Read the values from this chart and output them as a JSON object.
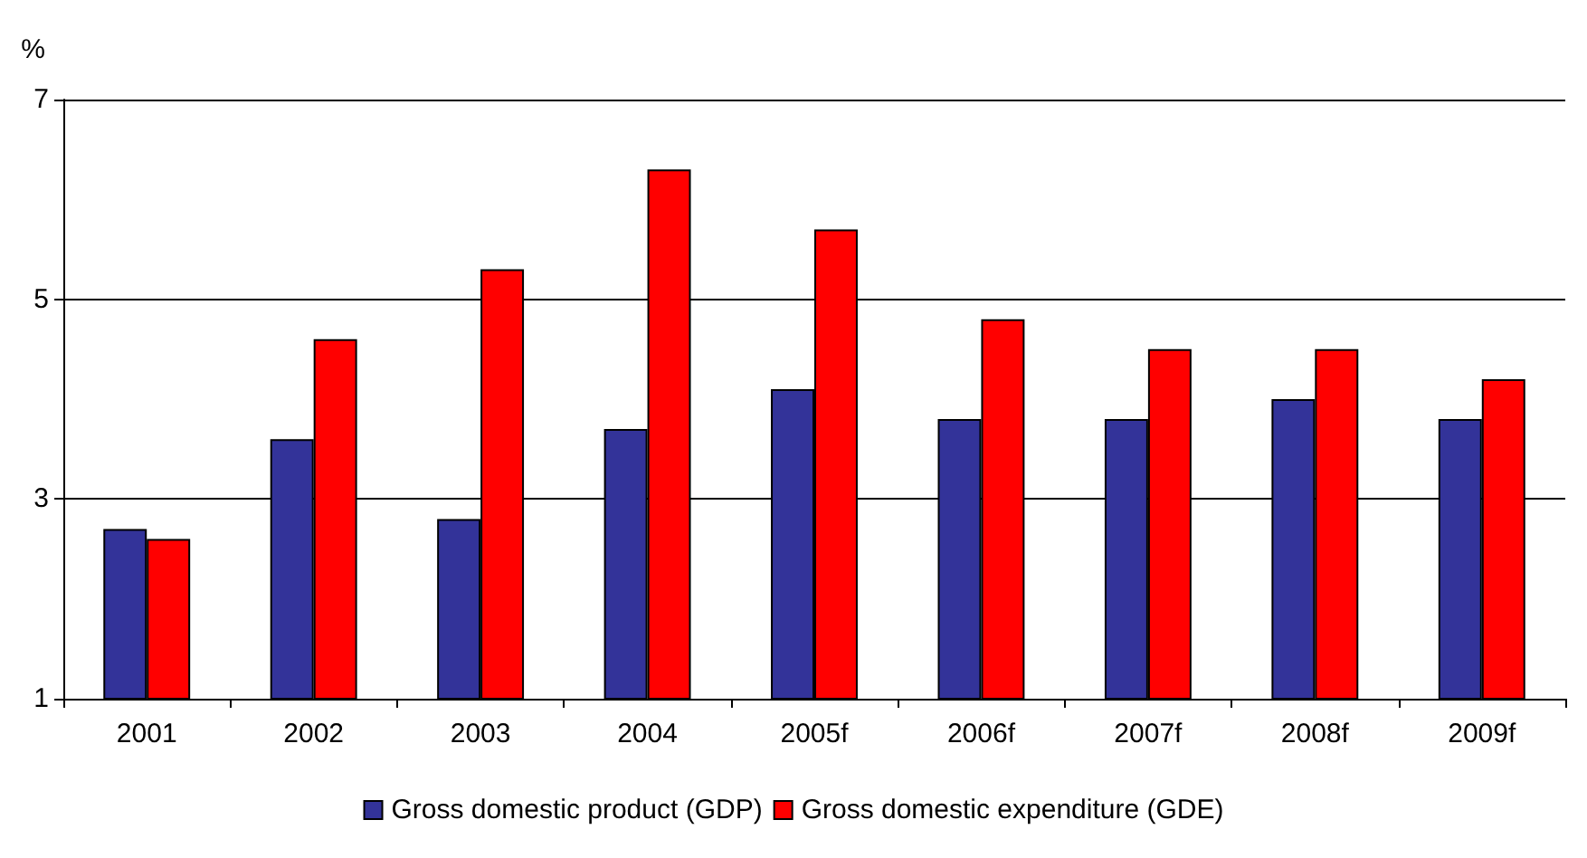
{
  "chart_data": {
    "type": "bar",
    "ylabel": "%",
    "categories": [
      "2001",
      "2002",
      "2003",
      "2004",
      "2005f",
      "2006f",
      "2007f",
      "2008f",
      "2009f"
    ],
    "series": [
      {
        "name": "Gross domestic product (GDP)",
        "color": "#333399",
        "values": [
          2.7,
          3.6,
          2.8,
          3.7,
          4.1,
          3.8,
          3.8,
          4.0,
          3.8
        ]
      },
      {
        "name": "Gross domestic expenditure (GDE)",
        "color": "#ff0000",
        "values": [
          2.6,
          4.6,
          5.3,
          6.3,
          5.7,
          4.8,
          4.5,
          4.5,
          4.2
        ]
      }
    ],
    "ylim": [
      1,
      7
    ],
    "yticks": [
      1,
      3,
      5,
      7
    ],
    "grid": "y",
    "legend": "bottom"
  }
}
